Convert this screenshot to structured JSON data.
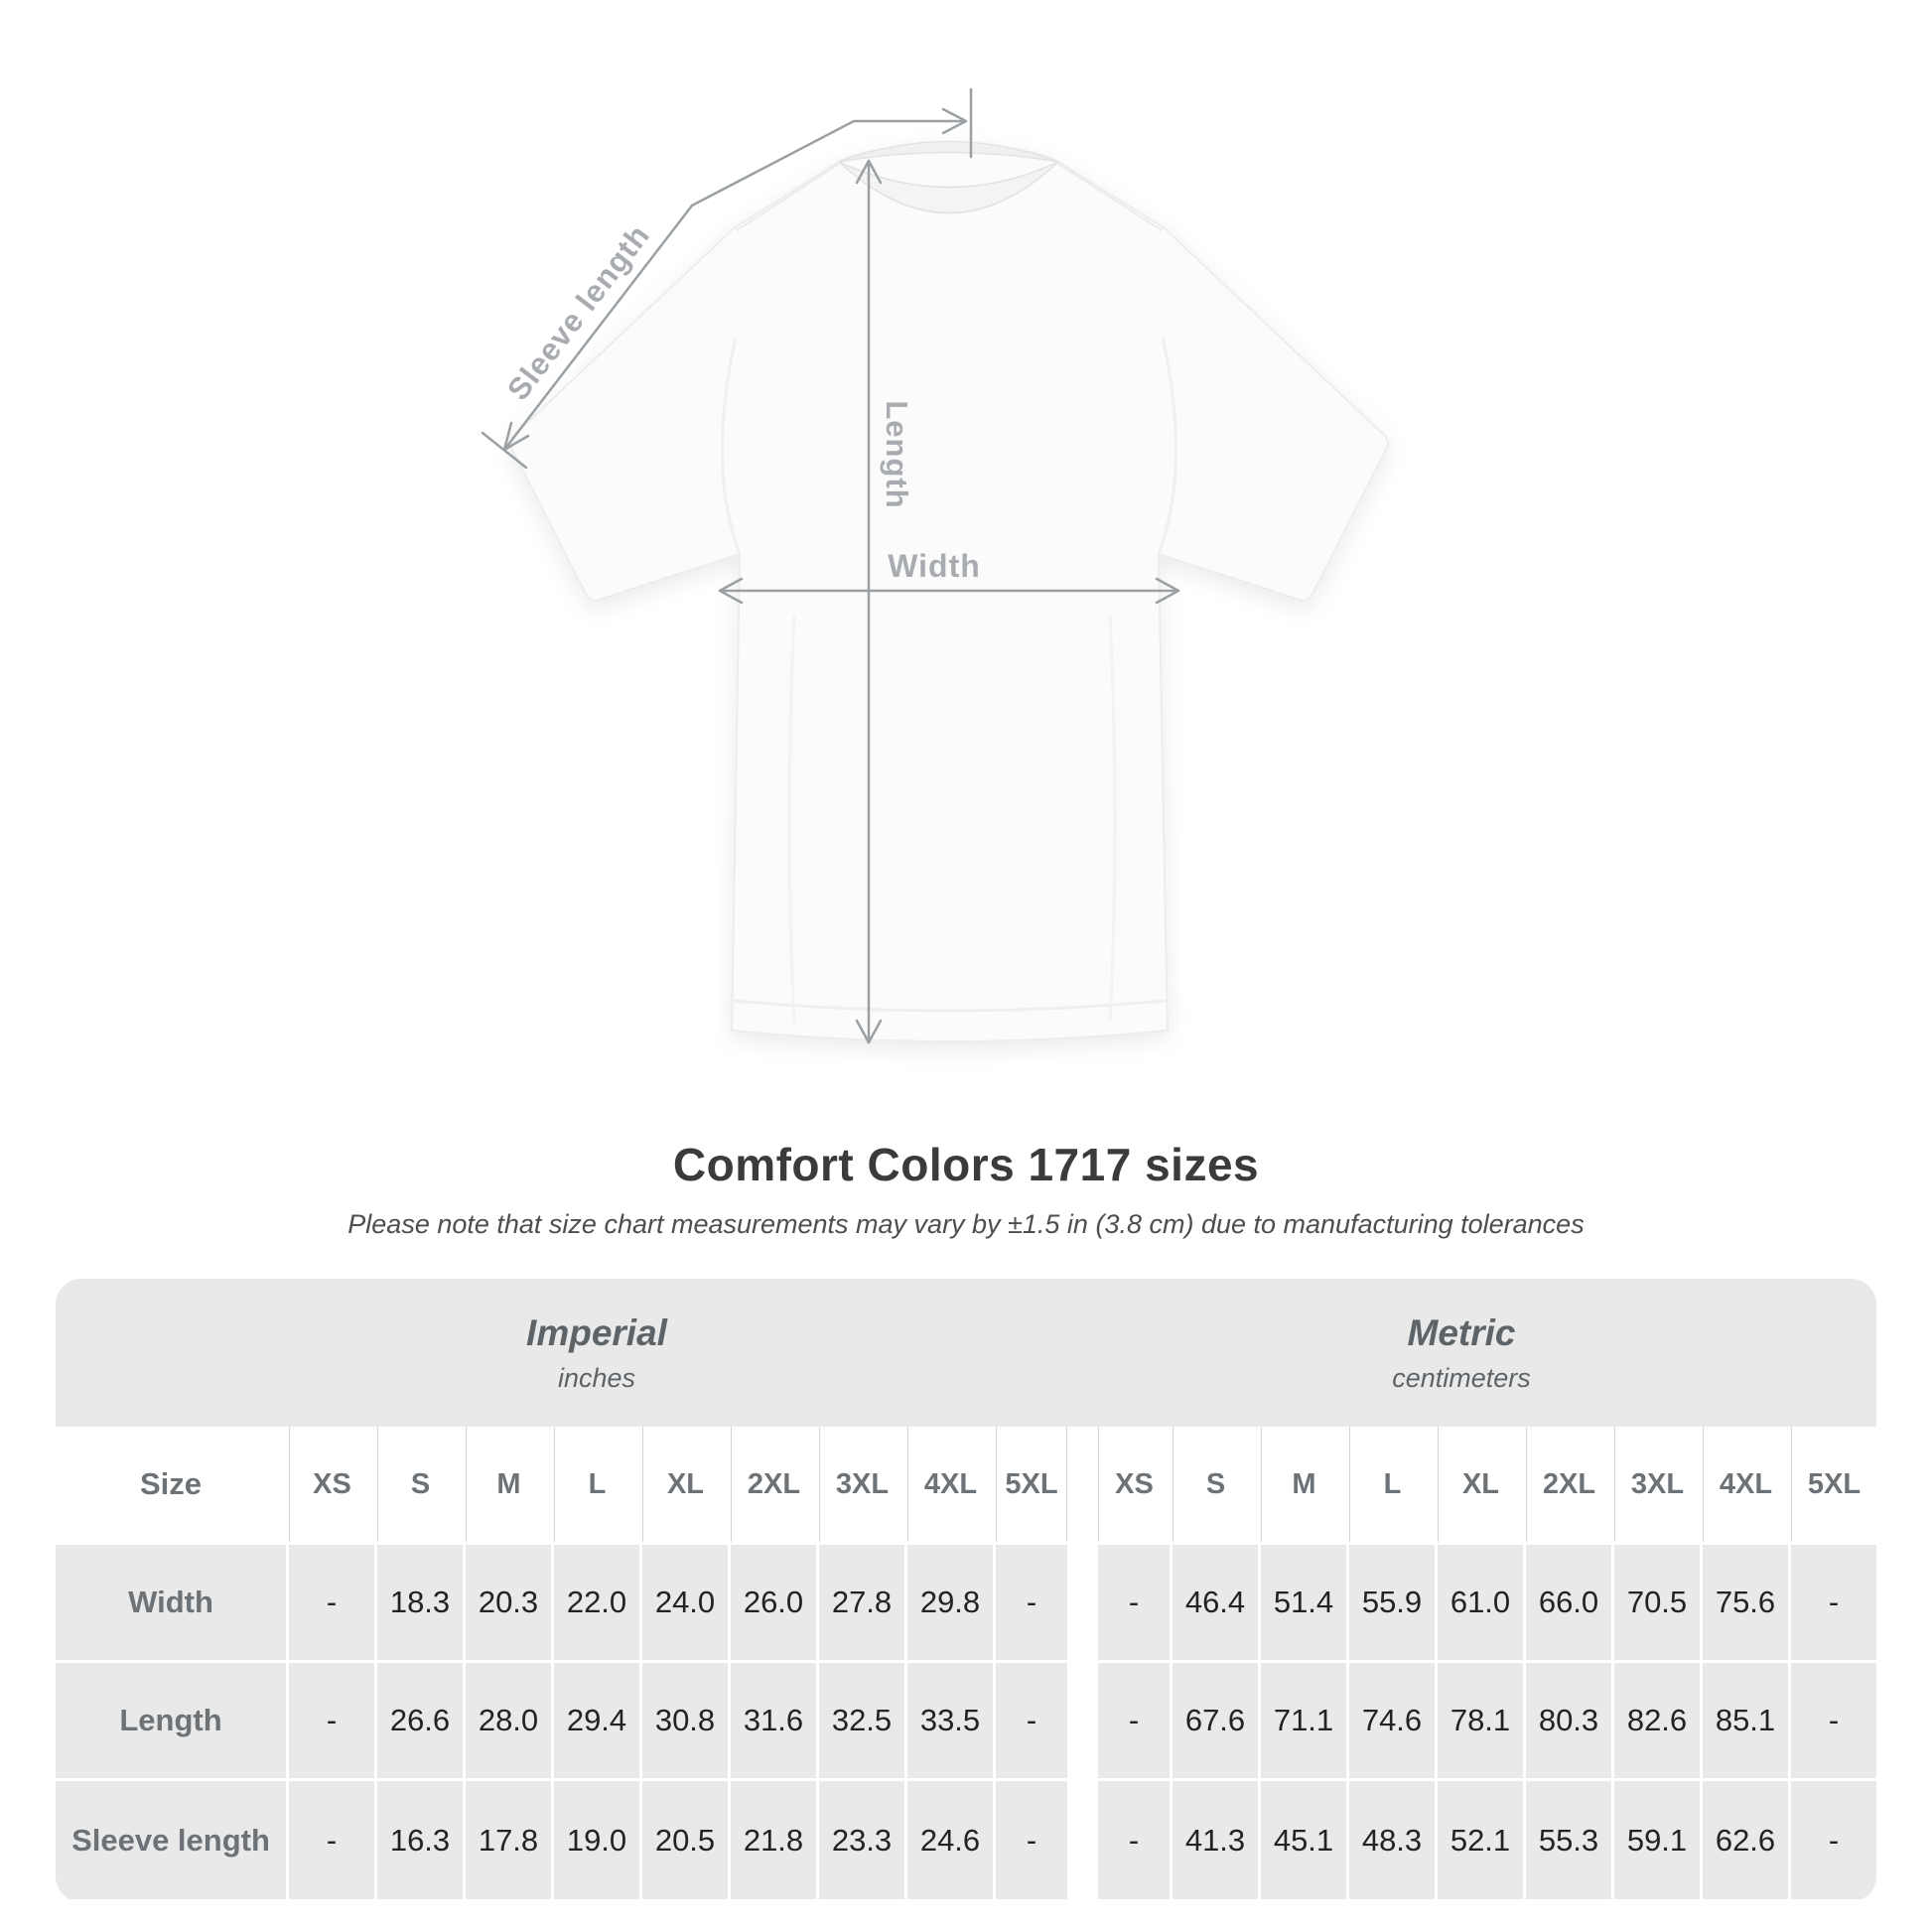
{
  "diagram": {
    "labels": {
      "sleeve_length": "Sleeve length",
      "length": "Length",
      "width": "Width"
    },
    "colors": {
      "measurement_line": "#9aa0a4",
      "measurement_label": "#a8acb0",
      "shirt_fill": "#fbfbfb",
      "shirt_outline": "#ececec"
    }
  },
  "heading": {
    "title": "Comfort Colors 1717 sizes",
    "subtitle": "Please note that size chart measurements may vary by ±1.5 in (3.8 cm) due to manufacturing tolerances"
  },
  "table": {
    "colors": {
      "band": "#e9e9e9",
      "separator": "#d8d8d8",
      "header_text": "#6d7277",
      "value_text": "#232323",
      "title_text": "#3b3b3b",
      "subtitle_text": "#4e4e4e"
    },
    "size_column_header": "Size",
    "unit_groups": [
      {
        "name": "Imperial",
        "unit": "inches"
      },
      {
        "name": "Metric",
        "unit": "centimeters"
      }
    ],
    "sizes": [
      "XS",
      "S",
      "M",
      "L",
      "XL",
      "2XL",
      "3XL",
      "4XL",
      "5XL"
    ],
    "rows": [
      {
        "label": "Width",
        "imperial": [
          "-",
          "18.3",
          "20.3",
          "22.0",
          "24.0",
          "26.0",
          "27.8",
          "29.8",
          "-"
        ],
        "metric": [
          "-",
          "46.4",
          "51.4",
          "55.9",
          "61.0",
          "66.0",
          "70.5",
          "75.6",
          "-"
        ]
      },
      {
        "label": "Length",
        "imperial": [
          "-",
          "26.6",
          "28.0",
          "29.4",
          "30.8",
          "31.6",
          "32.5",
          "33.5",
          "-"
        ],
        "metric": [
          "-",
          "67.6",
          "71.1",
          "74.6",
          "78.1",
          "80.3",
          "82.6",
          "85.1",
          "-"
        ]
      },
      {
        "label": "Sleeve length",
        "imperial": [
          "-",
          "16.3",
          "17.8",
          "19.0",
          "20.5",
          "21.8",
          "23.3",
          "24.6",
          "-"
        ],
        "metric": [
          "-",
          "41.3",
          "45.1",
          "48.3",
          "52.1",
          "55.3",
          "59.1",
          "62.6",
          "-"
        ]
      }
    ]
  }
}
